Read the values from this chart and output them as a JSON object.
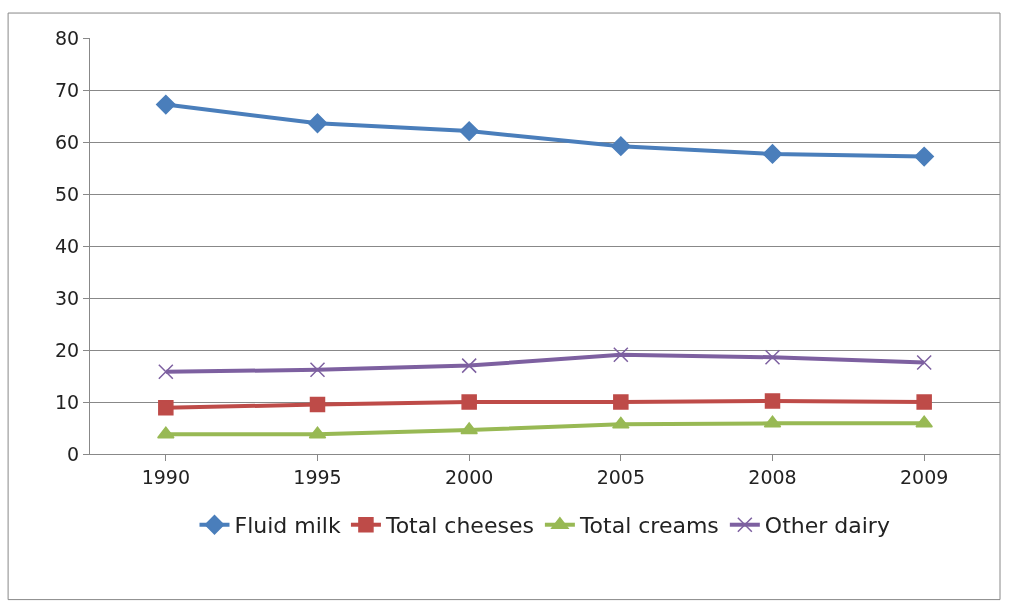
{
  "chart_data": {
    "type": "line",
    "categories": [
      "1990",
      "1995",
      "2000",
      "2005",
      "2008",
      "2009"
    ],
    "series": [
      {
        "name": "Fluid milk",
        "color": "#4a7ebb",
        "marker": "diamond",
        "values": [
          67.2,
          63.6,
          62.1,
          59.2,
          57.7,
          57.2
        ]
      },
      {
        "name": "Total cheeses",
        "color": "#be4b48",
        "marker": "square",
        "values": [
          8.9,
          9.5,
          10.0,
          10.0,
          10.2,
          10.0
        ]
      },
      {
        "name": "Total creams",
        "color": "#98b954",
        "marker": "triangle",
        "values": [
          3.8,
          3.8,
          4.6,
          5.7,
          5.9,
          5.9
        ]
      },
      {
        "name": "Other dairy",
        "color": "#7d60a0",
        "marker": "cross",
        "values": [
          15.8,
          16.2,
          17.0,
          19.1,
          18.6,
          17.6
        ]
      }
    ],
    "ylim": [
      0,
      80
    ],
    "yticks": [
      0,
      10,
      20,
      30,
      40,
      50,
      60,
      70,
      80
    ],
    "grid": "y",
    "legend": "bottom",
    "line_style": "solid"
  }
}
